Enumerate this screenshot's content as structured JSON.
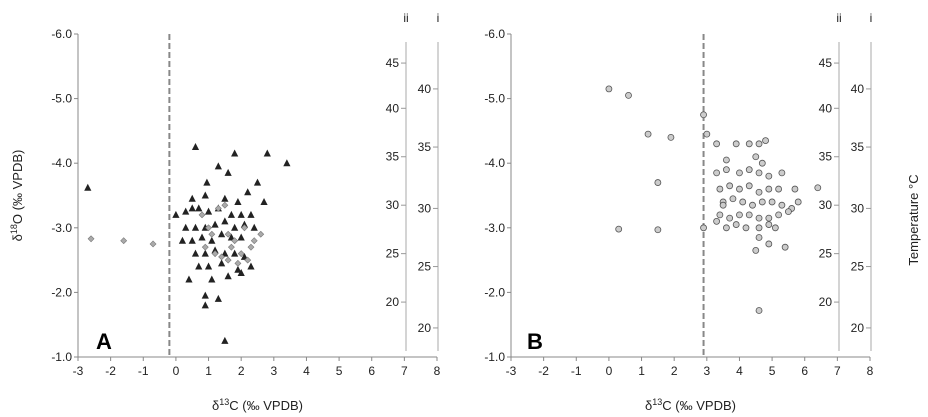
{
  "chart_data": [
    {
      "type": "scatter",
      "panel_label": "A",
      "xlabel": "δ13C (‰ VPDB)",
      "ylabel": "δ18O (‰ VPDB)",
      "xlim": [
        -3,
        8
      ],
      "ylim": [
        -1.0,
        -6.0
      ],
      "y_inverted": true,
      "x_ticks": [
        "-3",
        "-2",
        "-1",
        "0",
        "1",
        "2",
        "3",
        "4",
        "5",
        "6",
        "7",
        "8"
      ],
      "y_ticks": [
        "-1.0",
        "-2.0",
        "-3.0",
        "-4.0",
        "-5.0",
        "-6.0"
      ],
      "dashed_vline_x": -0.2,
      "secondary_axes": [
        {
          "label": "ii",
          "ticks": [
            {
              "text": "45",
              "y": -5.55
            },
            {
              "text": "40",
              "y": -4.85
            },
            {
              "text": "35",
              "y": -4.1
            },
            {
              "text": "30",
              "y": -3.35
            },
            {
              "text": "25",
              "y": -2.6
            },
            {
              "text": "20",
              "y": -1.85
            }
          ]
        },
        {
          "label": "i",
          "ticks": [
            {
              "text": "40",
              "y": -5.15
            },
            {
              "text": "35",
              "y": -4.25
            },
            {
              "text": "30",
              "y": -3.3
            },
            {
              "text": "25",
              "y": -2.4
            },
            {
              "text": "20",
              "y": -1.45
            }
          ]
        }
      ],
      "series": [
        {
          "marker": "triangle",
          "color": "#222222",
          "points": [
            [
              -2.7,
              -3.62
            ],
            [
              0.6,
              -4.25
            ],
            [
              1.8,
              -4.15
            ],
            [
              2.8,
              -4.15
            ],
            [
              3.4,
              -4.0
            ],
            [
              1.3,
              -3.95
            ],
            [
              0.95,
              -3.7
            ],
            [
              1.6,
              -3.85
            ],
            [
              2.5,
              -3.7
            ],
            [
              0.5,
              -3.45
            ],
            [
              0.9,
              -3.5
            ],
            [
              1.5,
              -3.45
            ],
            [
              1.9,
              -3.4
            ],
            [
              2.2,
              -3.55
            ],
            [
              2.7,
              -3.4
            ],
            [
              0.0,
              -3.2
            ],
            [
              0.3,
              -3.25
            ],
            [
              0.5,
              -3.3
            ],
            [
              0.7,
              -3.3
            ],
            [
              1.0,
              -3.25
            ],
            [
              1.3,
              -3.3
            ],
            [
              1.7,
              -3.2
            ],
            [
              2.0,
              -3.2
            ],
            [
              2.3,
              -3.2
            ],
            [
              0.3,
              -3.0
            ],
            [
              0.6,
              -3.0
            ],
            [
              0.9,
              -3.0
            ],
            [
              1.2,
              -3.05
            ],
            [
              1.5,
              -3.1
            ],
            [
              1.8,
              -3.0
            ],
            [
              2.1,
              -3.05
            ],
            [
              2.4,
              -3.0
            ],
            [
              0.2,
              -2.8
            ],
            [
              0.5,
              -2.8
            ],
            [
              0.8,
              -2.85
            ],
            [
              1.1,
              -2.8
            ],
            [
              1.4,
              -2.9
            ],
            [
              1.7,
              -2.85
            ],
            [
              2.0,
              -2.85
            ],
            [
              0.6,
              -2.6
            ],
            [
              0.9,
              -2.6
            ],
            [
              1.2,
              -2.65
            ],
            [
              1.5,
              -2.6
            ],
            [
              1.8,
              -2.6
            ],
            [
              2.1,
              -2.55
            ],
            [
              0.7,
              -2.4
            ],
            [
              1.0,
              -2.4
            ],
            [
              1.4,
              -2.45
            ],
            [
              1.9,
              -2.35
            ],
            [
              2.3,
              -2.4
            ],
            [
              0.4,
              -2.2
            ],
            [
              1.1,
              -2.2
            ],
            [
              1.6,
              -2.25
            ],
            [
              2.0,
              -2.3
            ],
            [
              0.9,
              -1.95
            ],
            [
              1.3,
              -1.9
            ],
            [
              0.9,
              -1.8
            ],
            [
              1.5,
              -1.25
            ]
          ]
        },
        {
          "marker": "diamond",
          "color": "#aaaaaa",
          "points": [
            [
              -2.6,
              -2.83
            ],
            [
              -1.6,
              -2.8
            ],
            [
              -0.7,
              -2.75
            ],
            [
              0.8,
              -3.2
            ],
            [
              1.0,
              -3.0
            ],
            [
              1.3,
              -3.3
            ],
            [
              1.5,
              -3.35
            ],
            [
              1.6,
              -2.9
            ],
            [
              1.7,
              -2.7
            ],
            [
              1.8,
              -2.8
            ],
            [
              2.0,
              -2.6
            ],
            [
              2.1,
              -3.0
            ],
            [
              2.2,
              -2.5
            ],
            [
              2.4,
              -2.8
            ],
            [
              2.6,
              -2.9
            ],
            [
              1.4,
              -2.55
            ],
            [
              1.9,
              -2.45
            ],
            [
              0.9,
              -2.7
            ],
            [
              1.2,
              -2.6
            ],
            [
              2.3,
              -2.7
            ],
            [
              1.6,
              -2.5
            ],
            [
              1.1,
              -2.9
            ]
          ]
        }
      ]
    },
    {
      "type": "scatter",
      "panel_label": "B",
      "xlabel": "δ13C (‰ VPDB)",
      "ylabel": "",
      "secondary_ylabel": "Temperature °C",
      "xlim": [
        -3,
        8
      ],
      "ylim": [
        -1.0,
        -6.0
      ],
      "y_inverted": true,
      "x_ticks": [
        "-3",
        "-2",
        "-1",
        "0",
        "1",
        "2",
        "3",
        "4",
        "5",
        "6",
        "7",
        "8"
      ],
      "y_ticks": [
        "-1.0",
        "-2.0",
        "-3.0",
        "-4.0",
        "-5.0",
        "-6.0"
      ],
      "dashed_vline_x": 2.9,
      "secondary_axes": [
        {
          "label": "ii",
          "ticks": [
            {
              "text": "45",
              "y": -5.55
            },
            {
              "text": "40",
              "y": -4.85
            },
            {
              "text": "35",
              "y": -4.1
            },
            {
              "text": "30",
              "y": -3.35
            },
            {
              "text": "25",
              "y": -2.6
            },
            {
              "text": "20",
              "y": -1.85
            }
          ]
        },
        {
          "label": "i",
          "ticks": [
            {
              "text": "40",
              "y": -5.15
            },
            {
              "text": "35",
              "y": -4.25
            },
            {
              "text": "30",
              "y": -3.3
            },
            {
              "text": "25",
              "y": -2.4
            },
            {
              "text": "20",
              "y": -1.45
            }
          ]
        }
      ],
      "series": [
        {
          "marker": "circle",
          "color": "#cccccc",
          "points": [
            [
              0.0,
              -5.15
            ],
            [
              0.6,
              -5.05
            ],
            [
              1.2,
              -4.45
            ],
            [
              1.9,
              -4.4
            ],
            [
              1.5,
              -3.7
            ],
            [
              0.3,
              -2.98
            ],
            [
              1.5,
              -2.97
            ],
            [
              2.9,
              -3.0
            ],
            [
              2.9,
              -4.75
            ],
            [
              3.0,
              -4.45
            ],
            [
              3.3,
              -4.3
            ],
            [
              3.6,
              -4.05
            ],
            [
              3.9,
              -4.3
            ],
            [
              4.3,
              -4.3
            ],
            [
              4.6,
              -4.3
            ],
            [
              4.8,
              -4.35
            ],
            [
              4.5,
              -4.1
            ],
            [
              4.7,
              -4.0
            ],
            [
              3.3,
              -3.85
            ],
            [
              3.6,
              -3.9
            ],
            [
              4.0,
              -3.85
            ],
            [
              4.3,
              -3.9
            ],
            [
              4.6,
              -3.85
            ],
            [
              4.9,
              -3.8
            ],
            [
              5.3,
              -3.85
            ],
            [
              3.4,
              -3.6
            ],
            [
              3.7,
              -3.65
            ],
            [
              4.0,
              -3.6
            ],
            [
              4.3,
              -3.65
            ],
            [
              4.6,
              -3.55
            ],
            [
              4.9,
              -3.6
            ],
            [
              5.2,
              -3.6
            ],
            [
              5.7,
              -3.6
            ],
            [
              6.4,
              -3.62
            ],
            [
              3.5,
              -3.4
            ],
            [
              3.8,
              -3.45
            ],
            [
              4.1,
              -3.4
            ],
            [
              4.4,
              -3.35
            ],
            [
              4.7,
              -3.4
            ],
            [
              5.0,
              -3.4
            ],
            [
              5.3,
              -3.35
            ],
            [
              5.6,
              -3.3
            ],
            [
              3.4,
              -3.2
            ],
            [
              3.7,
              -3.15
            ],
            [
              4.0,
              -3.2
            ],
            [
              4.3,
              -3.2
            ],
            [
              4.6,
              -3.15
            ],
            [
              4.9,
              -3.15
            ],
            [
              5.2,
              -3.2
            ],
            [
              5.5,
              -3.25
            ],
            [
              3.6,
              -3.0
            ],
            [
              3.9,
              -3.05
            ],
            [
              4.2,
              -3.0
            ],
            [
              4.6,
              -3.0
            ],
            [
              4.9,
              -3.05
            ],
            [
              5.1,
              -3.0
            ],
            [
              3.3,
              -3.1
            ],
            [
              3.5,
              -3.35
            ],
            [
              5.8,
              -3.4
            ],
            [
              4.6,
              -2.85
            ],
            [
              4.9,
              -2.75
            ],
            [
              5.4,
              -2.7
            ],
            [
              4.5,
              -2.65
            ],
            [
              4.6,
              -1.72
            ]
          ]
        }
      ]
    }
  ]
}
